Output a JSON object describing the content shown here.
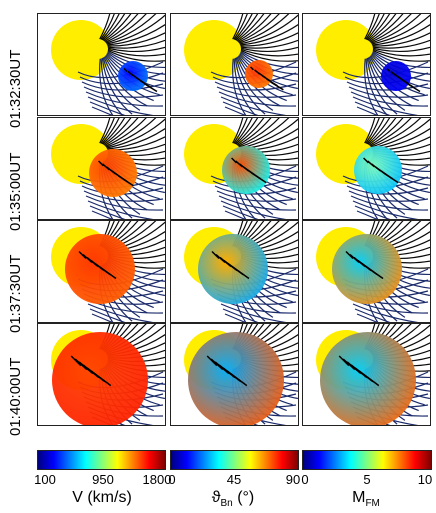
{
  "rows": [
    {
      "time": "01:32:30UT"
    },
    {
      "time": "01:35:00UT"
    },
    {
      "time": "01:37:30UT"
    },
    {
      "time": "01:40:00UT"
    }
  ],
  "columns": [
    "V",
    "theta_Bn",
    "M_FM"
  ],
  "colorbars": [
    {
      "ticks": [
        "100",
        "950",
        "1800"
      ],
      "label_main": "V (km/s)",
      "label_sub": ""
    },
    {
      "ticks": [
        "0",
        "45",
        "90"
      ],
      "label_main": "ϑ",
      "label_sub": "Bn",
      "label_tail": " (°)"
    },
    {
      "ticks": [
        "0",
        "5",
        "10"
      ],
      "label_main": "M",
      "label_sub": "FM",
      "label_tail": ""
    }
  ],
  "colors": {
    "sun": "#ffee00",
    "field_line": "#0a0a0a",
    "field_line_blue": "#1a2a6a",
    "jet_colormap": [
      "#00007f",
      "#0000ff",
      "#007fff",
      "#00ffff",
      "#7fff7f",
      "#ffff00",
      "#ff7f00",
      "#ff0000",
      "#7f0000"
    ]
  }
}
